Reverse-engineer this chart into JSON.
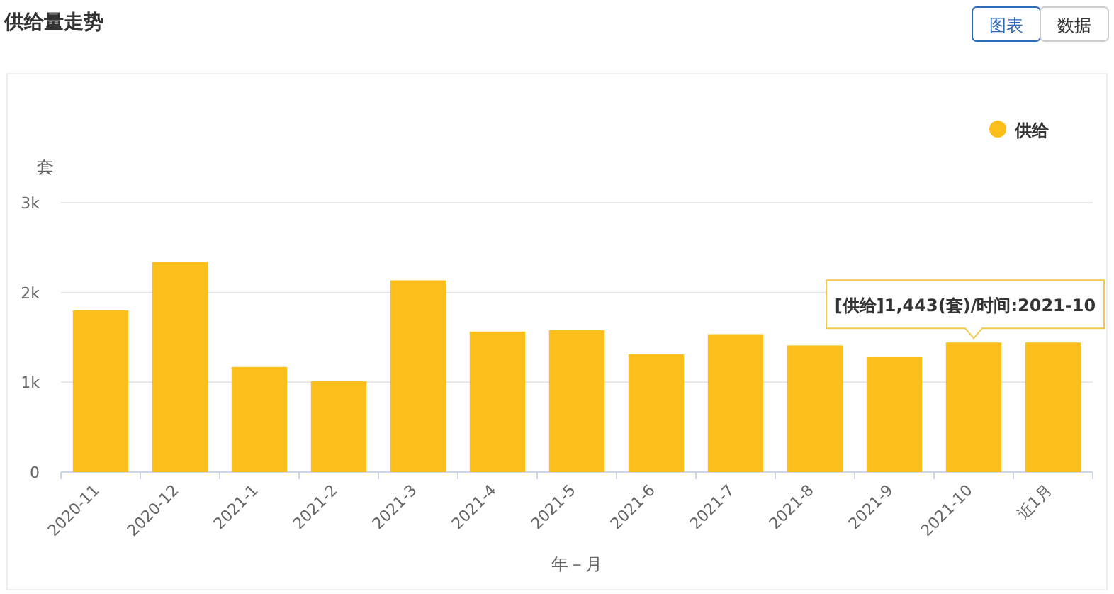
{
  "chart_data": {
    "type": "bar",
    "title": "供给量走势",
    "xlabel": "年－月",
    "ylabel": "套",
    "categories": [
      "2020-11",
      "2020-12",
      "2021-1",
      "2021-2",
      "2021-3",
      "2021-4",
      "2021-5",
      "2021-6",
      "2021-7",
      "2021-8",
      "2021-9",
      "2021-10",
      "近1月"
    ],
    "series": [
      {
        "name": "供给",
        "color": "#fcbe1a",
        "values": [
          1800,
          2340,
          1170,
          1010,
          2135,
          1565,
          1580,
          1310,
          1535,
          1410,
          1280,
          1443,
          1443
        ]
      }
    ],
    "ylim": [
      0,
      3000
    ],
    "yticks": [
      0,
      {
        "value": 1000,
        "label": "1k"
      },
      {
        "value": 2000,
        "label": "2k"
      },
      {
        "value": 3000,
        "label": "3k"
      }
    ],
    "grid": "y",
    "legend": "top right",
    "annotations": [
      "图表",
      "数据",
      {
        "text": "[供给]1,443(套)/时间:2021-10",
        "x": "2021-10",
        "y": 1443
      }
    ]
  }
}
